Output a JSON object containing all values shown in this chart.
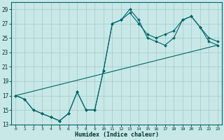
{
  "xlabel": "Humidex (Indice chaleur)",
  "bg_color": "#c8e8e8",
  "grid_color": "#a0c8c8",
  "line_color": "#006666",
  "xlim": [
    -0.5,
    23.5
  ],
  "ylim": [
    13,
    30
  ],
  "yticks": [
    13,
    15,
    17,
    19,
    21,
    23,
    25,
    27,
    29
  ],
  "xticks": [
    0,
    1,
    2,
    3,
    4,
    5,
    6,
    7,
    8,
    9,
    10,
    11,
    12,
    13,
    14,
    15,
    16,
    17,
    18,
    19,
    20,
    21,
    22,
    23
  ],
  "line1_x": [
    0,
    1,
    2,
    3,
    4,
    5,
    6,
    7,
    8,
    9,
    10,
    11,
    12,
    13,
    14,
    15,
    16,
    17,
    18,
    19,
    20,
    21,
    22,
    23
  ],
  "line1_y": [
    17,
    16.5,
    15,
    14.5,
    14,
    13.5,
    14.5,
    17.5,
    15,
    15,
    20.5,
    27,
    27.5,
    29,
    27.5,
    25,
    24.5,
    24,
    25,
    27.5,
    28,
    26.5,
    24.5,
    24
  ],
  "line2_x": [
    0,
    1,
    2,
    3,
    4,
    5,
    6,
    7,
    8,
    9,
    10,
    11,
    12,
    13,
    14,
    15,
    16,
    17,
    18,
    19,
    20,
    21,
    22,
    23
  ],
  "line2_y": [
    17,
    16.5,
    15,
    14.5,
    14,
    13.5,
    14.5,
    17.5,
    15,
    15,
    20.5,
    27,
    27.5,
    28.5,
    27,
    25.5,
    25,
    25.5,
    26,
    27.5,
    28,
    26.5,
    25,
    24.5
  ],
  "line3_x": [
    0,
    23
  ],
  "line3_y": [
    17,
    24
  ]
}
